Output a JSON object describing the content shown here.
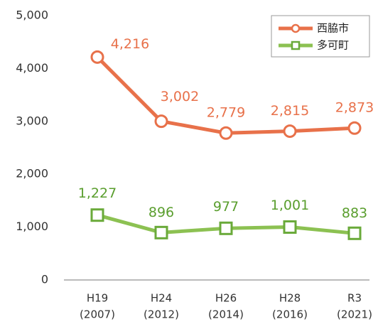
{
  "chart_data": {
    "type": "line",
    "categories": [
      [
        "H19",
        "(2007)"
      ],
      [
        "H24",
        "(2012)"
      ],
      [
        "H26",
        "(2014)"
      ],
      [
        "H28",
        "(2016)"
      ],
      [
        "R3",
        "(2021)"
      ]
    ],
    "series": [
      {
        "name": "西脇市",
        "color": "#e8714a",
        "marker": "circle",
        "values": [
          4216,
          3002,
          2779,
          2815,
          2873
        ],
        "value_labels": [
          "4,216",
          "3,002",
          "2,779",
          "2,815",
          "2,873"
        ]
      },
      {
        "name": "多可町",
        "color": "#8cc152",
        "marker": "square",
        "values": [
          1227,
          896,
          977,
          1001,
          883
        ],
        "value_labels": [
          "1,227",
          "896",
          "977",
          "1,001",
          "883"
        ]
      }
    ],
    "ylim": [
      0,
      5000
    ],
    "yticks": [
      0,
      {
        "value": 1000,
        "label": "1,000"
      },
      {
        "value": 2000,
        "label": "2,000"
      },
      {
        "value": 3000,
        "label": "3,000"
      },
      {
        "value": 4000,
        "label": "4,000"
      },
      {
        "value": 5000,
        "label": "5,000"
      }
    ],
    "grid": false,
    "legend": "upper right"
  }
}
